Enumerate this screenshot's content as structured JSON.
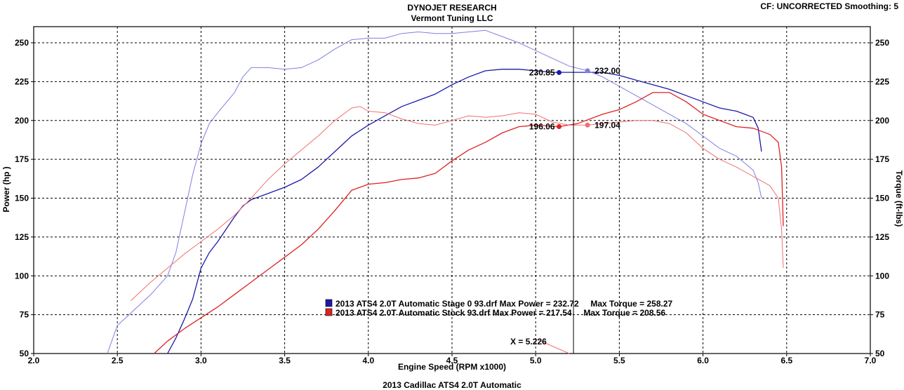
{
  "header": {
    "title": "DYNOJET RESEARCH",
    "subtitle": "Vermont Tuning LLC",
    "cf_label": "CF: UNCORRECTED  Smoothing: 5"
  },
  "footer": "2013 Cadillac ATS4 2.0T Automatic",
  "chart_data": {
    "type": "line",
    "xlabel": "Engine Speed (RPM x1000)",
    "ylabel_left": "Power (hp )",
    "ylabel_right": "Torque (ft-lbs)",
    "xlim": [
      2.0,
      7.0
    ],
    "ylim": [
      50,
      260
    ],
    "x_ticks": [
      2.0,
      2.5,
      3.0,
      3.5,
      4.0,
      4.5,
      5.0,
      5.5,
      6.0,
      6.5,
      7.0
    ],
    "x_tick_labels": [
      "2.0",
      "2.5",
      "3.0",
      "3.5",
      "4.0",
      "4.5",
      "5.0",
      "5.5",
      "6.0",
      "6.5",
      "7.0"
    ],
    "y_ticks": [
      50,
      75,
      100,
      125,
      150,
      175,
      200,
      225,
      250
    ],
    "grid": true,
    "cursor": {
      "x": 5.226,
      "label": "X = 5.226",
      "markers": [
        {
          "x": 5.14,
          "y": 230.85,
          "label": "230.85",
          "color": "#1a1aaa",
          "side": "left"
        },
        {
          "x": 5.31,
          "y": 232.0,
          "label": "232.00",
          "color": "#7f7fe0",
          "side": "right"
        },
        {
          "x": 5.14,
          "y": 196.06,
          "label": "196.06",
          "color": "#dd2222",
          "side": "left"
        },
        {
          "x": 5.31,
          "y": 197.04,
          "label": "197.04",
          "color": "#f07070",
          "side": "right"
        }
      ]
    },
    "legend": [
      {
        "text": "2013 ATS4 2.0T Automatic Stage 0 93.drf Max Power = 232.72     Max Torque = 258.27",
        "color": "#1a1aaa"
      },
      {
        "text": "2013 ATS4 2.0T Automatic Stock 93.drf Max Power = 217.54     Max Torque = 208.56",
        "color": "#dd2222"
      }
    ],
    "legend_position": "center-bottom",
    "series": [
      {
        "role": "Stage 0 power",
        "color": "#1a1aaa",
        "width": 1.3,
        "x": [
          2.8,
          2.85,
          2.9,
          2.95,
          3.0,
          3.05,
          3.1,
          3.15,
          3.2,
          3.25,
          3.3,
          3.4,
          3.5,
          3.6,
          3.7,
          3.8,
          3.9,
          4.0,
          4.1,
          4.2,
          4.3,
          4.4,
          4.5,
          4.6,
          4.7,
          4.8,
          4.9,
          5.0,
          5.1,
          5.14,
          5.25,
          5.4,
          5.5,
          5.6,
          5.7,
          5.8,
          5.9,
          6.0,
          6.1,
          6.2,
          6.25,
          6.3,
          6.33,
          6.35
        ],
        "y": [
          50,
          60,
          72,
          85,
          105,
          115,
          122,
          130,
          138,
          145,
          149,
          153,
          157,
          162,
          170,
          180,
          190,
          197,
          203,
          209,
          213,
          217,
          223,
          228,
          232,
          233,
          233,
          232,
          231,
          231,
          231,
          231,
          229,
          226,
          223,
          220,
          216,
          212,
          208,
          206,
          204,
          202,
          195,
          180
        ]
      },
      {
        "role": "Stage 0 torque",
        "color": "#7f7fe0",
        "width": 1.0,
        "x": [
          2.44,
          2.5,
          2.6,
          2.7,
          2.8,
          2.85,
          2.9,
          2.95,
          3.0,
          3.05,
          3.1,
          3.2,
          3.25,
          3.3,
          3.4,
          3.5,
          3.6,
          3.7,
          3.8,
          3.9,
          4.0,
          4.1,
          4.2,
          4.3,
          4.4,
          4.5,
          4.6,
          4.7,
          4.8,
          4.9,
          5.0,
          5.1,
          5.2,
          5.31,
          5.4,
          5.5,
          5.6,
          5.7,
          5.8,
          5.9,
          6.0,
          6.1,
          6.2,
          6.3,
          6.33,
          6.35
        ],
        "y": [
          50,
          68,
          78,
          88,
          100,
          115,
          140,
          165,
          185,
          198,
          205,
          218,
          228,
          234,
          234,
          233,
          234,
          239,
          246,
          252,
          253,
          253,
          256,
          257,
          256,
          256,
          257,
          258,
          254,
          250,
          245,
          240,
          235,
          232,
          228,
          222,
          216,
          210,
          204,
          198,
          190,
          182,
          177,
          168,
          160,
          150
        ]
      },
      {
        "role": "Stock power",
        "color": "#dd2222",
        "width": 1.3,
        "x": [
          2.72,
          2.8,
          2.9,
          3.0,
          3.1,
          3.2,
          3.3,
          3.4,
          3.5,
          3.6,
          3.7,
          3.8,
          3.9,
          4.0,
          4.1,
          4.2,
          4.3,
          4.4,
          4.5,
          4.6,
          4.7,
          4.8,
          4.9,
          5.0,
          5.14,
          5.25,
          5.4,
          5.5,
          5.6,
          5.7,
          5.8,
          5.9,
          6.0,
          6.1,
          6.2,
          6.3,
          6.4,
          6.45,
          6.47,
          6.48
        ],
        "y": [
          50,
          58,
          66,
          73,
          80,
          88,
          96,
          104,
          112,
          120,
          130,
          142,
          155,
          159,
          160,
          162,
          163,
          166,
          174,
          181,
          186,
          192,
          196,
          197,
          196.06,
          198,
          204,
          207,
          212,
          218,
          218,
          212,
          204,
          200,
          196,
          195,
          191,
          186,
          170,
          132
        ]
      },
      {
        "role": "Stock torque",
        "color": "#f07070",
        "width": 1.0,
        "x": [
          2.58,
          2.7,
          2.8,
          2.9,
          3.0,
          3.1,
          3.2,
          3.3,
          3.4,
          3.5,
          3.6,
          3.7,
          3.8,
          3.9,
          3.95,
          4.0,
          4.1,
          4.2,
          4.3,
          4.4,
          4.5,
          4.6,
          4.7,
          4.8,
          4.9,
          5.0,
          5.1,
          5.2,
          5.31,
          5.4,
          5.5,
          5.6,
          5.7,
          5.8,
          5.9,
          6.0,
          6.1,
          6.2,
          6.3,
          6.4,
          6.45,
          6.47,
          6.48
        ],
        "y": [
          84,
          96,
          105,
          114,
          122,
          130,
          139,
          150,
          162,
          172,
          181,
          190,
          200,
          208,
          209,
          206,
          205,
          201,
          198,
          197,
          200,
          203,
          202,
          203,
          205,
          204,
          199,
          197,
          197.04,
          198,
          199,
          200,
          200,
          198,
          192,
          182,
          175,
          170,
          164,
          158,
          150,
          130,
          105
        ]
      }
    ]
  }
}
